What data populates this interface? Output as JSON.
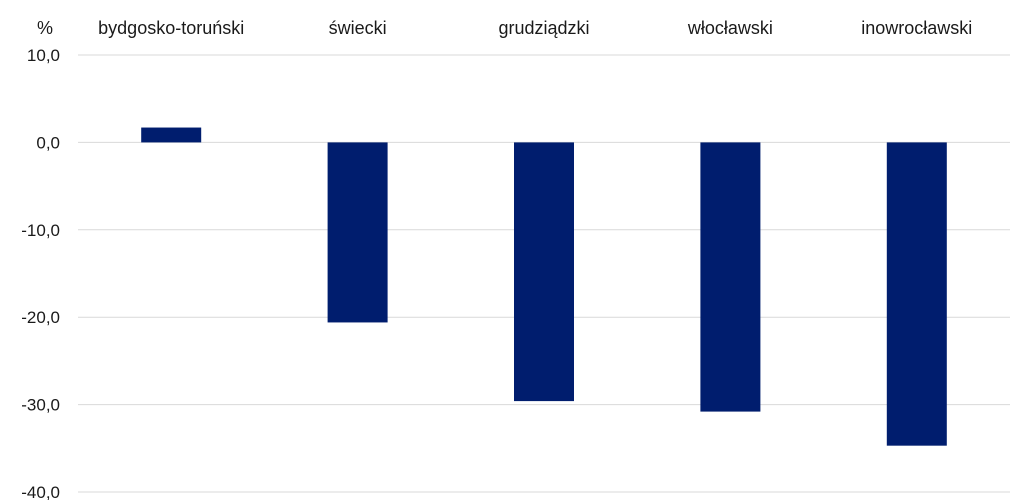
{
  "chart_data": {
    "type": "bar",
    "unit_label": "%",
    "categories": [
      "bydgosko-toruński",
      "świecki",
      "grudziądzki",
      "włocławski",
      "inowrocławski"
    ],
    "values": [
      1.7,
      -20.6,
      -29.6,
      -30.8,
      -34.7
    ],
    "ylim": [
      -40,
      10
    ],
    "yticks": [
      10,
      0,
      -10,
      -20,
      -30,
      -40
    ],
    "ytick_labels": [
      "10,0",
      "0,0",
      "-10,0",
      "-20,0",
      "-30,0",
      "-40,0"
    ],
    "category_label_position": "top",
    "grid": true,
    "bar_color": "#001d6e",
    "grid_color": "#d9d9d9"
  }
}
